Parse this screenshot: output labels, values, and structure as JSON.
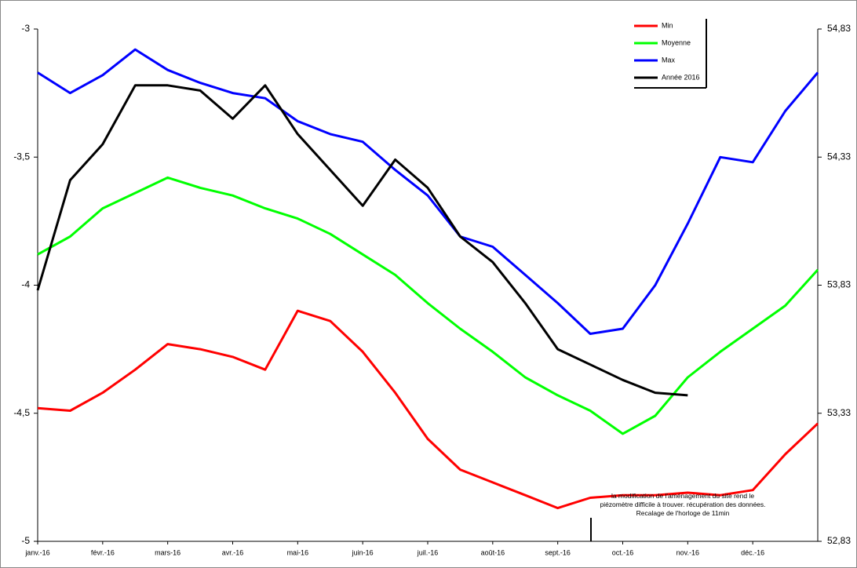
{
  "chart_data": {
    "type": "line",
    "x": [
      0,
      0.5,
      1,
      1.5,
      2,
      2.5,
      3,
      3.5,
      4,
      4.5,
      5,
      5.5,
      6,
      6.5,
      7,
      7.5,
      8,
      8.5,
      9,
      9.5,
      10,
      10.5,
      11,
      11.5,
      12
    ],
    "xlim": [
      0,
      12
    ],
    "xticks": [
      {
        "value": 0,
        "label": "janv.-16"
      },
      {
        "value": 1,
        "label": "févr.-16"
      },
      {
        "value": 2,
        "label": "mars-16"
      },
      {
        "value": 3,
        "label": "avr.-16"
      },
      {
        "value": 4,
        "label": "mai-16"
      },
      {
        "value": 5,
        "label": "juin-16"
      },
      {
        "value": 6,
        "label": "juil.-16"
      },
      {
        "value": 7,
        "label": "août-16"
      },
      {
        "value": 8,
        "label": "sept.-16"
      },
      {
        "value": 9,
        "label": "oct.-16"
      },
      {
        "value": 10,
        "label": "nov.-16"
      },
      {
        "value": 11,
        "label": "déc.-16"
      }
    ],
    "ylim": [
      -5,
      -3
    ],
    "yticks": [
      -3,
      {
        "value": -3.5,
        "label": "-3,5"
      },
      -4,
      {
        "value": -4.5,
        "label": "-4,5"
      },
      -5
    ],
    "y2lim": [
      52.83,
      54.83
    ],
    "y2ticks": [
      {
        "value": 54.83,
        "label": "54,83"
      },
      {
        "value": 54.33,
        "label": "54,33"
      },
      {
        "value": 53.83,
        "label": "53,83"
      },
      {
        "value": 53.33,
        "label": "53,33"
      },
      {
        "value": 52.83,
        "label": "52,83"
      }
    ],
    "series": [
      {
        "name": "Min",
        "color": "#ff0000",
        "values": [
          -4.48,
          -4.49,
          -4.42,
          -4.33,
          -4.23,
          -4.25,
          -4.28,
          -4.33,
          -4.1,
          -4.14,
          -4.26,
          -4.42,
          -4.6,
          -4.72,
          -4.77,
          -4.82,
          -4.87,
          -4.83,
          -4.82,
          -4.82,
          -4.81,
          -4.82,
          -4.8,
          -4.66,
          -4.54
        ]
      },
      {
        "name": "Moyenne",
        "color": "#00ff00",
        "values": [
          -3.88,
          -3.81,
          -3.7,
          -3.64,
          -3.58,
          -3.62,
          -3.65,
          -3.7,
          -3.74,
          -3.8,
          -3.88,
          -3.96,
          -4.07,
          -4.17,
          -4.26,
          -4.36,
          -4.43,
          -4.49,
          -4.58,
          -4.51,
          -4.36,
          -4.26,
          -4.17,
          -4.08,
          -3.94
        ]
      },
      {
        "name": "Max",
        "color": "#0000ff",
        "values": [
          -3.17,
          -3.25,
          -3.18,
          -3.08,
          -3.16,
          -3.21,
          -3.25,
          -3.27,
          -3.36,
          -3.41,
          -3.44,
          -3.55,
          -3.65,
          -3.81,
          -3.85,
          -3.96,
          -4.07,
          -4.19,
          -4.17,
          -4.0,
          -3.76,
          -3.5,
          -3.52,
          -3.32,
          -3.17
        ]
      },
      {
        "name": "Année 2016",
        "color": "#000000",
        "values": [
          -4.02,
          -3.59,
          -3.45,
          -3.22,
          -3.22,
          -3.24,
          -3.35,
          -3.22,
          -3.41,
          -3.55,
          -3.69,
          -3.51,
          -3.62,
          -3.81,
          -3.91,
          -4.07,
          -4.25,
          -4.31,
          -4.37,
          -4.42,
          -4.43,
          null,
          null,
          null,
          null
        ]
      }
    ],
    "annotation": "la modification de l'aménagement   du site rend le piézomètre  difficile à trouver. récupération des données. Recalage  de l'horloge de 11min"
  }
}
